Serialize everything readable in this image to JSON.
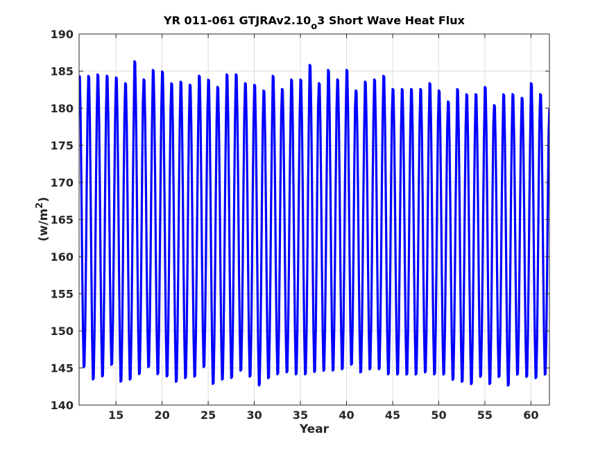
{
  "chart_data": {
    "type": "line",
    "title_main": "YR 011-061 GTJRAv2.10",
    "title_sub": "o",
    "title_rest": "3 Short Wave Heat Flux",
    "xlabel": "Year",
    "ylabel_main": "(w/m",
    "ylabel_sup": "2",
    "ylabel_end": ")",
    "xlim": [
      11,
      62
    ],
    "ylim": [
      140,
      190
    ],
    "x_ticks": [
      15,
      20,
      25,
      30,
      35,
      40,
      45,
      50,
      55,
      60
    ],
    "y_ticks": [
      140,
      145,
      150,
      155,
      160,
      165,
      170,
      175,
      180,
      185,
      190
    ],
    "grid": true,
    "series": [
      {
        "color": "#0000ff",
        "samples_per_year": 12,
        "x_start": 11.0,
        "annual_maxima": [
          185.0,
          185.0,
          185.2,
          185.0,
          184.8,
          184.0,
          187.0,
          184.5,
          185.8,
          185.6,
          184.0,
          184.2,
          183.8,
          185.0,
          184.5,
          183.5,
          185.2,
          185.2,
          184.0,
          183.8,
          183.0,
          185.0,
          183.2,
          184.5,
          184.5,
          186.5,
          184.0,
          185.8,
          184.5,
          185.8,
          183.0,
          184.2,
          184.5,
          185.0,
          183.2,
          183.2,
          183.2,
          183.2,
          184.0,
          183.0,
          181.5,
          183.2,
          182.5,
          182.5,
          183.5,
          181.0,
          182.5,
          182.5,
          182.0,
          184.0,
          182.5
        ],
        "annual_minima": [
          144.5,
          142.8,
          143.2,
          144.8,
          142.5,
          142.8,
          143.5,
          144.5,
          143.5,
          143.2,
          142.5,
          143.0,
          143.2,
          144.5,
          142.2,
          142.8,
          143.0,
          144.0,
          143.2,
          142.0,
          143.0,
          143.5,
          143.8,
          143.5,
          143.5,
          143.8,
          144.0,
          144.0,
          144.2,
          144.8,
          143.8,
          144.2,
          144.2,
          143.5,
          143.5,
          143.5,
          143.5,
          143.8,
          143.5,
          143.5,
          142.8,
          142.5,
          142.2,
          143.2,
          142.2,
          143.2,
          142.0,
          143.5,
          143.2,
          143.0,
          143.5
        ],
        "end_value": 180.0
      }
    ]
  }
}
